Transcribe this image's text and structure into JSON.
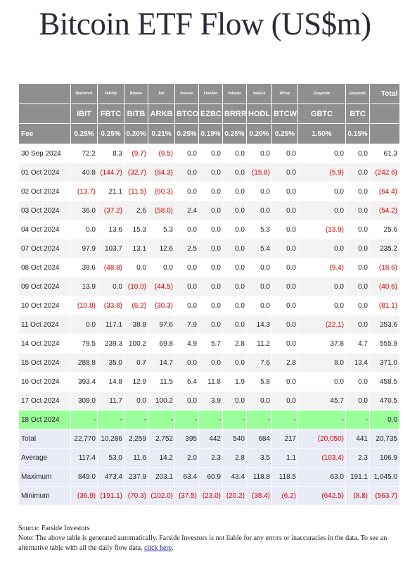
{
  "title": "Bitcoin ETF Flow (US$m)",
  "table": {
    "issuers": [
      "Blackrock",
      "Fidelity",
      "Bitwise",
      "Ark",
      "Invesco",
      "Franklin",
      "Valkyrie",
      "VanEck",
      "WTree",
      "Grayscale",
      "Grayscale"
    ],
    "total_header": "Total",
    "tickers": [
      "IBIT",
      "FBTC",
      "BITB",
      "ARKB",
      "BTCO",
      "EZBC",
      "BRRR",
      "HODL",
      "BTCW",
      "GBTC",
      "BTC"
    ],
    "fee_label": "Fee",
    "fees": [
      "0.25%",
      "0.25%",
      "0.20%",
      "0.21%",
      "0.25%",
      "0.19%",
      "0.25%",
      "0.20%",
      "0.25%",
      "1.50%",
      "0.15%"
    ],
    "rows": [
      {
        "date": "30 Sep 2024",
        "values": [
          "72.2",
          "8.3",
          "(9.7)",
          "(9.5)",
          "0.0",
          "0.0",
          "0.0",
          "0.0",
          "0.0",
          "0.0",
          "0.0"
        ],
        "total": "61.3"
      },
      {
        "date": "01 Oct 2024",
        "values": [
          "40.8",
          "(144.7)",
          "(32.7)",
          "(84.3)",
          "0.0",
          "0.0",
          "0.0",
          "(15.8)",
          "0.0",
          "(5.9)",
          "0.0"
        ],
        "total": "(242.6)"
      },
      {
        "date": "02 Oct 2024",
        "values": [
          "(13.7)",
          "21.1",
          "(11.5)",
          "(60.3)",
          "0.0",
          "0.0",
          "0.0",
          "0.0",
          "0.0",
          "0.0",
          "0.0"
        ],
        "total": "(64.4)"
      },
      {
        "date": "03 Oct 2024",
        "values": [
          "36.0",
          "(37.2)",
          "2.6",
          "(58.0)",
          "2.4",
          "0.0",
          "0.0",
          "0.0",
          "0.0",
          "0.0",
          "0.0"
        ],
        "total": "(54.2)"
      },
      {
        "date": "04 Oct 2024",
        "values": [
          "0.0",
          "13.6",
          "15.3",
          "5.3",
          "0.0",
          "0.0",
          "0.0",
          "5.3",
          "0.0",
          "(13.9)",
          "0.0"
        ],
        "total": "25.6"
      },
      {
        "date": "07 Oct 2024",
        "values": [
          "97.9",
          "103.7",
          "13.1",
          "12.6",
          "2.5",
          "0.0",
          "0.0",
          "5.4",
          "0.0",
          "0.0",
          "0.0"
        ],
        "total": "235.2"
      },
      {
        "date": "08 Oct 2024",
        "values": [
          "39.6",
          "(48.8)",
          "0.0",
          "0.0",
          "0.0",
          "0.0",
          "0.0",
          "0.0",
          "0.0",
          "(9.4)",
          "0.0"
        ],
        "total": "(18.6)"
      },
      {
        "date": "09 Oct 2024",
        "values": [
          "13.9",
          "0.0",
          "(10.0)",
          "(44.5)",
          "0.0",
          "0.0",
          "0.0",
          "0.0",
          "0.0",
          "0.0",
          "0.0"
        ],
        "total": "(40.6)"
      },
      {
        "date": "10 Oct 2024",
        "values": [
          "(10.8)",
          "(33.8)",
          "(6.2)",
          "(30.3)",
          "0.0",
          "0.0",
          "0.0",
          "0.0",
          "0.0",
          "0.0",
          "0.0"
        ],
        "total": "(81.1)"
      },
      {
        "date": "11 Oct 2024",
        "values": [
          "0.0",
          "117.1",
          "38.8",
          "97.6",
          "7.9",
          "0.0",
          "0.0",
          "14.3",
          "0.0",
          "(22.1)",
          "0.0"
        ],
        "total": "253.6"
      },
      {
        "date": "14 Oct 2024",
        "values": [
          "79.5",
          "239.3",
          "100.2",
          "69.8",
          "4.9",
          "5.7",
          "2.8",
          "11.2",
          "0.0",
          "37.8",
          "4.7"
        ],
        "total": "555.9"
      },
      {
        "date": "15 Oct 2024",
        "values": [
          "288.8",
          "35.0",
          "0.7",
          "14.7",
          "0.0",
          "0.0",
          "0.0",
          "7.6",
          "2.8",
          "8.0",
          "13.4"
        ],
        "total": "371.0"
      },
      {
        "date": "16 Oct 2024",
        "values": [
          "393.4",
          "14.8",
          "12.9",
          "11.5",
          "6.4",
          "11.8",
          "1.9",
          "5.8",
          "0.0",
          "0.0",
          "0.0"
        ],
        "total": "458.5"
      },
      {
        "date": "17 Oct 2024",
        "values": [
          "309.0",
          "11.7",
          "0.0",
          "100.2",
          "0.0",
          "3.9",
          "0.0",
          "0.0",
          "0.0",
          "45.7",
          "0.0"
        ],
        "total": "470.5"
      },
      {
        "date": "18 Oct 2024",
        "values": [
          "-",
          "-",
          "-",
          "-",
          "-",
          "-",
          "-",
          "-",
          "-",
          "-",
          "-"
        ],
        "total": "0.0",
        "highlight": true
      }
    ],
    "summary": [
      {
        "label": "Total",
        "values": [
          "22,770",
          "10,286",
          "2,259",
          "2,752",
          "395",
          "442",
          "540",
          "684",
          "217",
          "(20,050)",
          "441"
        ],
        "total": "20,735"
      },
      {
        "label": "Average",
        "values": [
          "117.4",
          "53.0",
          "11.6",
          "14.2",
          "2.0",
          "2.3",
          "2.8",
          "3.5",
          "1.1",
          "(103.4)",
          "2.3"
        ],
        "total": "106.9"
      },
      {
        "label": "Maximum",
        "values": [
          "849.0",
          "473.4",
          "237.9",
          "203.1",
          "63.4",
          "60.9",
          "43.4",
          "118.8",
          "118.5",
          "63.0",
          "191.1"
        ],
        "total": "1,045.0"
      },
      {
        "label": "Minimum",
        "values": [
          "(36.9)",
          "(191.1)",
          "(70.3)",
          "(102.0)",
          "(37.5)",
          "(23.0)",
          "(20.2)",
          "(38.4)",
          "(6.2)",
          "(642.5)",
          "(8.8)"
        ],
        "total": "(563.7)"
      }
    ]
  },
  "footer": {
    "source": "Source: Farside Investors",
    "note": "Note: The above table is generated automatically. Farside Investors is not liable for any errors or inaccuracies in the data. To see an alternative table with all the daily flow data, ",
    "link_text": "click here",
    "tail": "."
  },
  "colors": {
    "header_bg": "#8f8f8f",
    "negative": "#d40000",
    "highlight_row": "#99ff99",
    "summary_bg": "#e9ebf6",
    "stripe": "#f3f3f3"
  }
}
